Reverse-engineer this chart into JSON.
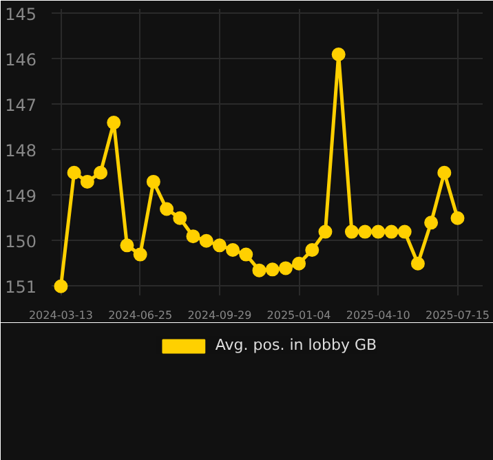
{
  "chart_data": {
    "type": "line",
    "categories": [
      "2024-03-13",
      null,
      null,
      null,
      null,
      null,
      "2024-06-25",
      null,
      null,
      null,
      null,
      null,
      "2024-09-29",
      null,
      null,
      null,
      null,
      null,
      "2025-01-04",
      null,
      null,
      null,
      null,
      null,
      "2025-04-10",
      null,
      null,
      null,
      null,
      null,
      "2025-07-15"
    ],
    "series": [
      {
        "name": "Avg. pos. in lobby GB",
        "color": "#ffd000",
        "values": [
          151.0,
          148.5,
          148.7,
          148.5,
          147.4,
          150.1,
          150.3,
          148.7,
          149.3,
          149.5,
          149.9,
          150.0,
          150.1,
          150.2,
          150.3,
          150.65,
          150.63,
          150.6,
          150.5,
          150.2,
          149.8,
          145.9,
          149.8,
          149.8,
          149.8,
          149.8,
          149.8,
          150.5,
          149.6,
          148.5,
          149.5
        ]
      }
    ],
    "ylim": [
      151.2,
      144.9
    ],
    "yticks": [
      145,
      146,
      147,
      148,
      149,
      150,
      151
    ],
    "grid": true,
    "legend": "bottom",
    "marker": "circle",
    "line_style": "solid"
  }
}
